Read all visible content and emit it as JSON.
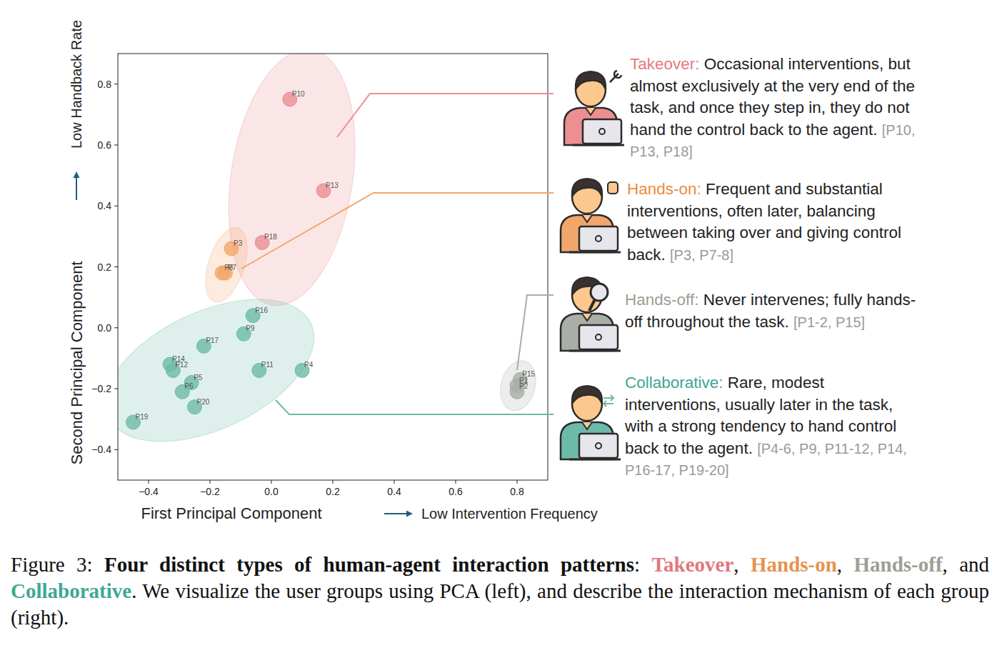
{
  "chart_data": {
    "type": "scatter",
    "x_label": "First Principal Component",
    "y_label": "Second Principal Component",
    "x_annotation": "Low Intervention Frequency",
    "y_annotation": "Low Handback Rate",
    "xlim": [
      -0.5,
      0.9
    ],
    "ylim": [
      -0.5,
      0.9
    ],
    "xticks": [
      {
        "value": -0.4,
        "label": "−0.4"
      },
      {
        "value": -0.2,
        "label": "−0.2"
      },
      {
        "value": 0,
        "label": "0.0"
      },
      0.2,
      0.4,
      0.6,
      0.8
    ],
    "yticks": [
      {
        "value": -0.4,
        "label": "−0.4"
      },
      {
        "value": -0.2,
        "label": "−0.2"
      },
      {
        "value": 0,
        "label": "0.0"
      },
      0.2,
      0.4,
      0.6,
      0.8
    ],
    "marker": "circle",
    "series": [
      {
        "name": "Takeover",
        "color": "#ec8f93",
        "labels": [
          "P10",
          "P13",
          "P18"
        ],
        "x": [
          0.06,
          0.17,
          -0.03
        ],
        "values": [
          0.75,
          0.45,
          0.28
        ]
      },
      {
        "name": "Hands-on",
        "color": "#f2a66a",
        "labels": [
          "P3",
          "P8",
          "P7"
        ],
        "x": [
          -0.13,
          -0.16,
          -0.15
        ],
        "values": [
          0.26,
          0.18,
          0.18
        ]
      },
      {
        "name": "Hands-off",
        "color": "#a9aea7",
        "labels": [
          "P15",
          "P1",
          "P2"
        ],
        "x": [
          0.81,
          0.8,
          0.8
        ],
        "values": [
          -0.17,
          -0.19,
          -0.21
        ]
      },
      {
        "name": "Collaborative",
        "color": "#6dbaa9",
        "labels": [
          "P16",
          "P9",
          "P17",
          "P14",
          "P12",
          "P5",
          "P6",
          "P11",
          "P4",
          "P20",
          "P19"
        ],
        "x": [
          -0.06,
          -0.09,
          -0.22,
          -0.33,
          -0.32,
          -0.26,
          -0.29,
          -0.04,
          0.1,
          -0.25,
          -0.45
        ],
        "values": [
          0.04,
          -0.02,
          -0.06,
          -0.12,
          -0.14,
          -0.18,
          -0.21,
          -0.14,
          -0.14,
          -0.26,
          -0.31
        ]
      }
    ]
  },
  "groups": [
    {
      "heading": "Takeover:",
      "color": "#e57b80",
      "description": "Occasional interventions, but almost exclusively at the very end of the task, and once they step in, they do not hand the control back to the agent.",
      "participants": "[P10, P13, P18]"
    },
    {
      "heading": "Hands-on:",
      "color": "#ec8b3e",
      "description": "Frequent and substantial interventions, often later, balancing between taking over and giving control back.",
      "participants": "[P3, P7-8]"
    },
    {
      "heading": "Hands-off:",
      "color": "#999f95",
      "description": "Never intervenes; fully hands-off throughout the task.",
      "participants": "[P1-2, P15]"
    },
    {
      "heading": "Collaborative:",
      "color": "#3fa593",
      "description": "Rare, modest interventions, usually later in the task, with a strong tendency to hand control back to the agent.",
      "participants": "[P4-6, P9, P11-12, P14, P16-17, P19-20]"
    }
  ],
  "caption": [
    {
      "text": "Figure 3: "
    },
    {
      "text": "Four distinct types of human-agent interaction patterns",
      "bold": true
    },
    {
      "text": ": "
    },
    {
      "text": "Takeover",
      "bold": true,
      "color": "#e0797d"
    },
    {
      "text": ", "
    },
    {
      "text": "Hands-on",
      "bold": true,
      "color": "#e8924f"
    },
    {
      "text": ", "
    },
    {
      "text": "Hands-off",
      "bold": true,
      "color": "#9aa095"
    },
    {
      "text": ", and "
    },
    {
      "text": "Collaborative",
      "bold": true,
      "color": "#3ea896"
    },
    {
      "text": ". We visualize the user groups using PCA (left), and describe the interaction mechanism of each group (right)."
    }
  ]
}
